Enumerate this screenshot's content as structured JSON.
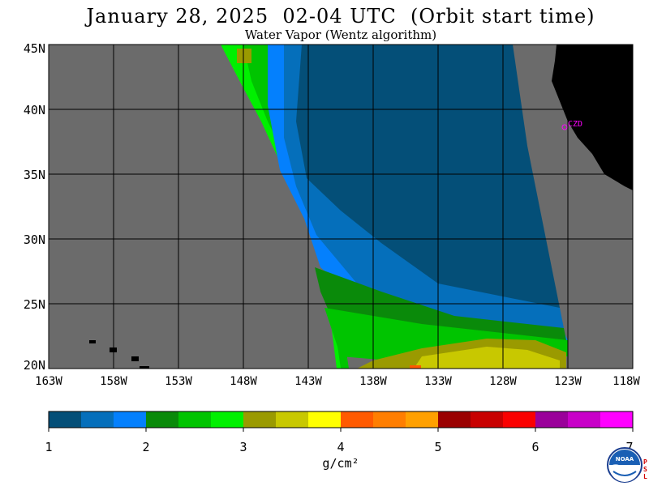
{
  "header": {
    "title": "January 28, 2025  02-04 UTC  (Orbit start time)",
    "subtitle": "Water Vapor (Wentz algorithm)"
  },
  "map": {
    "lat_labels": [
      "45N",
      "40N",
      "35N",
      "30N",
      "25N",
      "20N"
    ],
    "lon_labels": [
      "163W",
      "158W",
      "153W",
      "148W",
      "143W",
      "138W",
      "133W",
      "128W",
      "123W",
      "118W"
    ],
    "station_label": "CZD",
    "colors": {
      "no_data": "#6b6b6b",
      "land": "#000000",
      "grid": "#000000",
      "station": "#ff00ff"
    }
  },
  "colorbar": {
    "units": "g/cm²",
    "ticks": [
      "1",
      "2",
      "3",
      "4",
      "5",
      "6",
      "7"
    ],
    "colors": [
      "#044f78",
      "#056fbb",
      "#0480fd",
      "#0a8a0a",
      "#00c400",
      "#00f000",
      "#9a9a00",
      "#c8c800",
      "#ffff00",
      "#ff5a00",
      "#ff7e00",
      "#ffa000",
      "#9a0000",
      "#c80000",
      "#fa0000",
      "#9a009a",
      "#c800c8",
      "#ff00ff"
    ]
  },
  "logo": {
    "text": "NOAA",
    "side_letters": [
      "P",
      "S",
      "L"
    ]
  }
}
